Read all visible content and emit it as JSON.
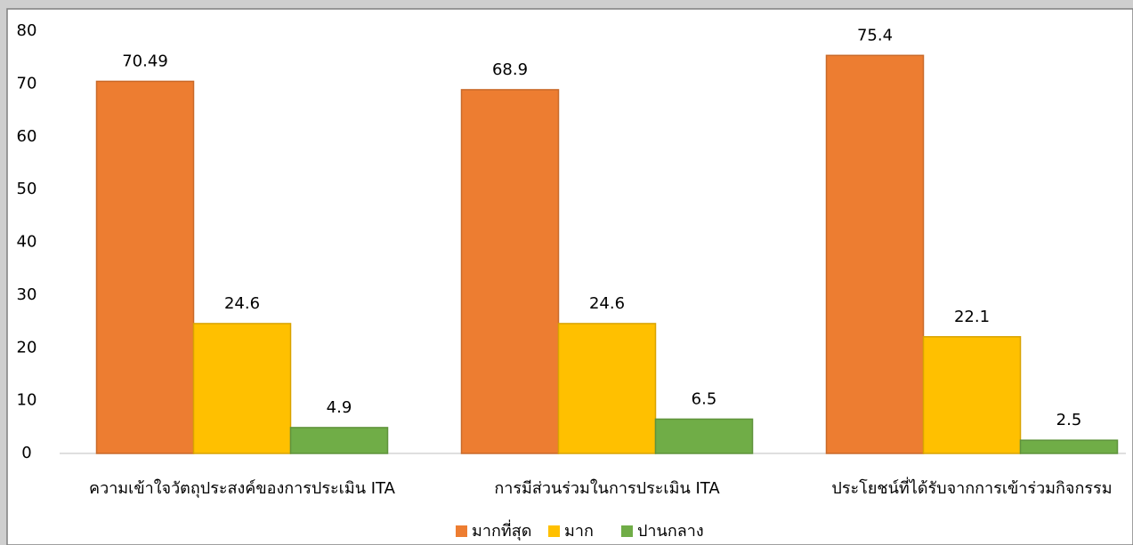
{
  "chart_data": {
    "type": "bar",
    "categories": [
      "ความเข้าใจวัตถุประสงค์ของการประเมิน ITA",
      "การมีส่วนร่วมในการประเมิน ITA",
      "ประโยชน์ที่ได้รับจากการเข้าร่วมกิจกรรม"
    ],
    "series": [
      {
        "name": "มากที่สุด",
        "color": "#ED7D31",
        "values": [
          70.49,
          68.9,
          75.4
        ]
      },
      {
        "name": "มาก",
        "color": "#FFC000",
        "values": [
          24.6,
          24.6,
          22.1
        ]
      },
      {
        "name": "ปานกลาง",
        "color": "#70AD47",
        "values": [
          4.9,
          6.5,
          2.5
        ]
      }
    ],
    "ylim": [
      0,
      80
    ],
    "yticks": [
      0,
      10,
      20,
      30,
      40,
      50,
      60,
      70,
      80
    ],
    "grid": false,
    "legend": "bottom"
  }
}
